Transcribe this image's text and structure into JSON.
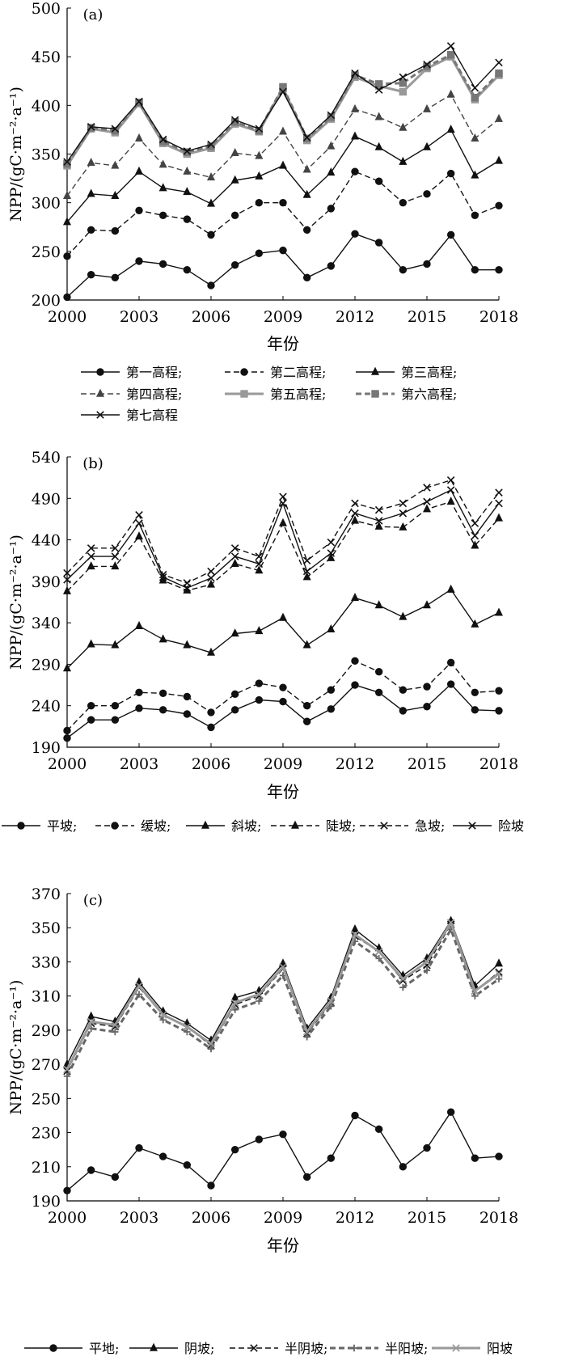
{
  "chart_data": [
    {
      "type": "line",
      "panel_label": "(a)",
      "ylabel": "NPP/(gC·m⁻²·a⁻¹)",
      "xlabel": "年份",
      "xlim": [
        2000,
        2018
      ],
      "ylim": [
        200,
        500
      ],
      "xticks": [
        "2000",
        "2003",
        "2006",
        "2009",
        "2012",
        "2015",
        "2018"
      ],
      "yticks": [
        "200",
        "250",
        "300",
        "350",
        "400",
        "450",
        "500"
      ],
      "x": [
        2000,
        2001,
        2002,
        2003,
        2004,
        2005,
        2006,
        2007,
        2008,
        2009,
        2010,
        2011,
        2012,
        2013,
        2014,
        2015,
        2016,
        2017,
        2018
      ],
      "legend_placement": "bottom",
      "series": [
        {
          "name": "第一高程;",
          "marker": "circle",
          "dash": "solid",
          "color": "#111111",
          "values": [
            203,
            226,
            223,
            240,
            237,
            231,
            215,
            236,
            248,
            251,
            223,
            235,
            268,
            259,
            231,
            237,
            267,
            231,
            231
          ]
        },
        {
          "name": "第二高程;",
          "marker": "circle",
          "dash": "dashed",
          "color": "#111111",
          "values": [
            245,
            272,
            271,
            292,
            287,
            283,
            267,
            287,
            300,
            300,
            272,
            294,
            332,
            322,
            300,
            309,
            330,
            287,
            297
          ]
        },
        {
          "name": "第三高程;",
          "marker": "triangle",
          "dash": "solid",
          "color": "#111111",
          "values": [
            280,
            309,
            307,
            332,
            315,
            311,
            299,
            323,
            327,
            338,
            308,
            331,
            368,
            357,
            342,
            357,
            375,
            328,
            343
          ]
        },
        {
          "name": "第四高程;",
          "marker": "triangle",
          "dash": "dashed",
          "color": "#444444",
          "values": [
            307,
            341,
            338,
            366,
            339,
            332,
            326,
            351,
            348,
            373,
            334,
            358,
            396,
            388,
            377,
            396,
            411,
            366,
            386
          ]
        },
        {
          "name": "第五高程;",
          "marker": "square",
          "dash": "solid-thick",
          "color": "#999999",
          "values": [
            338,
            376,
            372,
            402,
            361,
            350,
            356,
            381,
            373,
            418,
            364,
            386,
            429,
            420,
            414,
            438,
            450,
            406,
            431
          ]
        },
        {
          "name": "第六高程;",
          "marker": "square",
          "dash": "dashed-thick",
          "color": "#777777",
          "values": [
            340,
            377,
            374,
            403,
            363,
            352,
            358,
            383,
            374,
            419,
            366,
            388,
            431,
            422,
            423,
            440,
            452,
            408,
            433
          ]
        },
        {
          "name": "第七高程",
          "marker": "x",
          "dash": "solid",
          "color": "#111111",
          "values": [
            342,
            378,
            376,
            404,
            365,
            353,
            360,
            385,
            376,
            414,
            367,
            390,
            433,
            416,
            429,
            442,
            461,
            418,
            444
          ]
        }
      ]
    },
    {
      "type": "line",
      "panel_label": "(b)",
      "ylabel": "NPP/(gC·m⁻²·a⁻¹)",
      "xlabel": "年份",
      "xlim": [
        2000,
        2018
      ],
      "ylim": [
        190,
        540
      ],
      "xticks": [
        "2000",
        "2003",
        "2006",
        "2009",
        "2012",
        "2015",
        "2018"
      ],
      "yticks": [
        "190",
        "240",
        "290",
        "340",
        "390",
        "440",
        "490",
        "540"
      ],
      "x": [
        2000,
        2001,
        2002,
        2003,
        2004,
        2005,
        2006,
        2007,
        2008,
        2009,
        2010,
        2011,
        2012,
        2013,
        2014,
        2015,
        2016,
        2017,
        2018
      ],
      "legend_placement": "bottom",
      "series": [
        {
          "name": "平坡;",
          "marker": "circle",
          "dash": "solid",
          "color": "#111111",
          "values": [
            201,
            223,
            223,
            237,
            235,
            230,
            214,
            235,
            247,
            245,
            221,
            236,
            265,
            256,
            234,
            239,
            266,
            235,
            234
          ]
        },
        {
          "name": "缓坡;",
          "marker": "circle",
          "dash": "dashed",
          "color": "#111111",
          "values": [
            210,
            240,
            240,
            256,
            255,
            251,
            232,
            254,
            267,
            262,
            240,
            259,
            294,
            281,
            259,
            263,
            292,
            256,
            258
          ]
        },
        {
          "name": "斜坡;",
          "marker": "triangle",
          "dash": "solid",
          "color": "#111111",
          "values": [
            285,
            314,
            313,
            336,
            320,
            313,
            304,
            327,
            330,
            346,
            313,
            332,
            370,
            361,
            347,
            361,
            380,
            338,
            352
          ]
        },
        {
          "name": "陡坡;",
          "marker": "triangle",
          "dash": "dashed",
          "color": "#111111",
          "values": [
            378,
            408,
            408,
            444,
            391,
            379,
            386,
            411,
            403,
            460,
            395,
            418,
            463,
            456,
            455,
            477,
            486,
            433,
            466
          ]
        },
        {
          "name": "急坡;",
          "marker": "x",
          "dash": "dashed",
          "color": "#111111",
          "values": [
            400,
            430,
            430,
            470,
            398,
            388,
            402,
            430,
            420,
            492,
            415,
            437,
            484,
            476,
            484,
            503,
            512,
            460,
            497
          ]
        },
        {
          "name": "险坡",
          "marker": "x",
          "dash": "solid",
          "color": "#111111",
          "values": [
            392,
            420,
            420,
            460,
            395,
            382,
            394,
            420,
            411,
            484,
            402,
            424,
            472,
            463,
            472,
            486,
            500,
            445,
            484
          ]
        }
      ]
    },
    {
      "type": "line",
      "panel_label": "(c)",
      "ylabel": "NPP/(gC·m⁻²·a⁻¹)",
      "xlabel": "年份",
      "xlim": [
        2000,
        2018
      ],
      "ylim": [
        190,
        370
      ],
      "xticks": [
        "2000",
        "2003",
        "2006",
        "2009",
        "2012",
        "2015",
        "2018"
      ],
      "yticks": [
        "190",
        "210",
        "230",
        "250",
        "270",
        "290",
        "310",
        "330",
        "350",
        "370"
      ],
      "x": [
        2000,
        2001,
        2002,
        2003,
        2004,
        2005,
        2006,
        2007,
        2008,
        2009,
        2010,
        2011,
        2012,
        2013,
        2014,
        2015,
        2016,
        2017,
        2018
      ],
      "legend_placement": "bottom",
      "series": [
        {
          "name": "平地;",
          "marker": "circle",
          "dash": "solid",
          "color": "#111111",
          "values": [
            196,
            208,
            204,
            221,
            216,
            211,
            199,
            220,
            226,
            229,
            204,
            215,
            240,
            232,
            210,
            221,
            242,
            215,
            216
          ]
        },
        {
          "name": "阴坡;",
          "marker": "triangle",
          "dash": "solid",
          "color": "#111111",
          "values": [
            270,
            298,
            295,
            318,
            301,
            294,
            284,
            309,
            313,
            329,
            291,
            309,
            349,
            338,
            322,
            332,
            354,
            316,
            329
          ]
        },
        {
          "name": "半阴坡;",
          "marker": "x",
          "dash": "dashed",
          "color": "#111111",
          "values": [
            266,
            294,
            292,
            315,
            299,
            292,
            281,
            305,
            310,
            326,
            288,
            306,
            345,
            336,
            319,
            328,
            352,
            313,
            324
          ]
        },
        {
          "name": "半阳坡;",
          "marker": "plus",
          "dash": "dashed-thick",
          "color": "#666666",
          "values": [
            263,
            291,
            289,
            311,
            296,
            289,
            279,
            302,
            307,
            322,
            286,
            304,
            342,
            332,
            315,
            325,
            349,
            310,
            320
          ]
        },
        {
          "name": "阳坡",
          "marker": "x",
          "dash": "solid-thick",
          "color": "#999999",
          "values": [
            267,
            295,
            293,
            316,
            299,
            292,
            282,
            306,
            311,
            327,
            289,
            307,
            346,
            336,
            320,
            330,
            353,
            313,
            323
          ]
        }
      ]
    }
  ]
}
